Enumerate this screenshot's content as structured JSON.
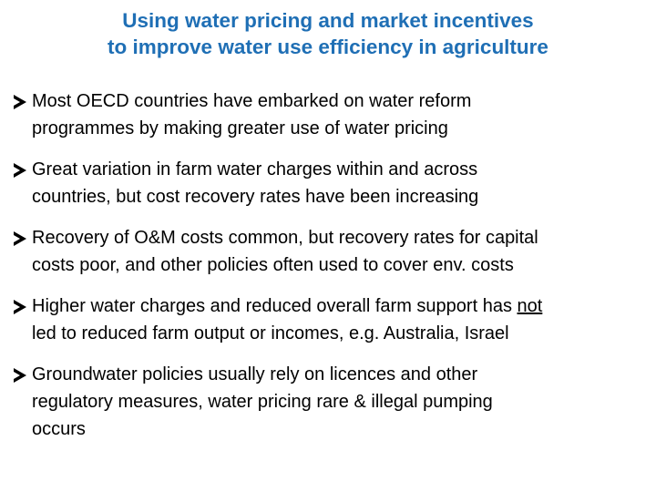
{
  "title": {
    "line1": "Using water pricing and market incentives",
    "line2": "to improve water use efficiency in  agriculture"
  },
  "bullets": [
    {
      "line1": "Most OECD countries have embarked on water reform",
      "line2": "programmes by making greater use of water pricing"
    },
    {
      "line1": "Great variation in farm water charges within and across",
      "line2": "countries, but cost recovery rates have been increasing"
    },
    {
      "line1": "Recovery of O&M costs common, but recovery rates for capital",
      "line2": "costs poor, and other policies often used to cover env. costs"
    },
    {
      "line1a": "Higher water charges and reduced overall farm support has ",
      "line1b": "not",
      "line2": "led to reduced farm output or incomes, e.g. Australia, Israel"
    },
    {
      "line1": "Groundwater  policies usually rely on licences and other",
      "line2": "regulatory measures, water pricing rare & illegal pumping",
      "line3": "occurs"
    }
  ],
  "icons": {
    "bullet": "arrow-bullet-icon"
  },
  "colors": {
    "title": "#1f6fb5",
    "text": "#000000",
    "background": "#ffffff"
  }
}
